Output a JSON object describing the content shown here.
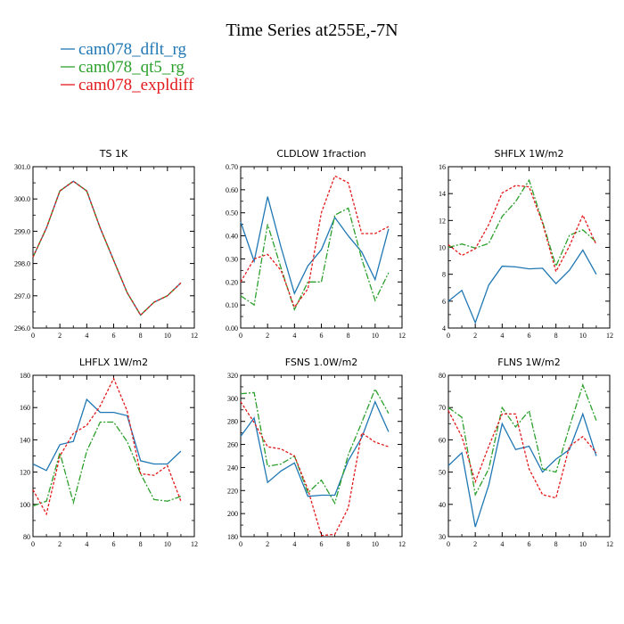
{
  "title": "Time Series at255E,-7N",
  "legend": [
    {
      "name": "cam078_dflt_rg",
      "color": "#1f77b4"
    },
    {
      "name": "cam078_qt5_rg",
      "color": "#2ca02c"
    },
    {
      "name": "cam078_expldiff",
      "color": "#e31a1c"
    }
  ],
  "chart_data": [
    {
      "type": "line",
      "title": "TS   1K",
      "x": [
        0,
        1,
        2,
        3,
        4,
        5,
        6,
        7,
        8,
        9,
        10,
        11
      ],
      "xlim": [
        0,
        12
      ],
      "xticks": [
        0,
        2,
        4,
        6,
        8,
        10,
        12
      ],
      "ylim": [
        296.0,
        301.0
      ],
      "yticks": [
        "296.0",
        "297.0",
        "298.0",
        "299.0",
        "300.0",
        "301.0"
      ],
      "series": [
        {
          "name": "cam078_dflt_rg",
          "values": [
            298.2,
            299.1,
            300.25,
            300.55,
            300.25,
            299.1,
            298.1,
            297.1,
            296.4,
            296.8,
            297.0,
            297.4
          ]
        },
        {
          "name": "cam078_qt5_rg",
          "values": [
            298.2,
            299.1,
            300.25,
            300.55,
            300.25,
            299.1,
            298.1,
            297.1,
            296.4,
            296.8,
            297.0,
            297.4
          ]
        },
        {
          "name": "cam078_expldiff",
          "values": [
            298.2,
            299.1,
            300.25,
            300.55,
            300.25,
            299.1,
            298.1,
            297.1,
            296.4,
            296.8,
            297.0,
            297.4
          ]
        }
      ]
    },
    {
      "type": "line",
      "title": "CLDLOW   1fraction",
      "x": [
        0,
        1,
        2,
        3,
        4,
        5,
        6,
        7,
        8,
        9,
        10,
        11
      ],
      "xlim": [
        0,
        12
      ],
      "xticks": [
        0,
        2,
        4,
        6,
        8,
        10,
        12
      ],
      "ylim": [
        0.0,
        0.7
      ],
      "yticks": [
        "0.00",
        "0.10",
        "0.20",
        "0.30",
        "0.40",
        "0.50",
        "0.60",
        "0.70"
      ],
      "series": [
        {
          "name": "cam078_dflt_rg",
          "values": [
            0.46,
            0.29,
            0.57,
            0.35,
            0.15,
            0.27,
            0.34,
            0.48,
            0.4,
            0.33,
            0.21,
            0.43
          ]
        },
        {
          "name": "cam078_qt5_rg",
          "values": [
            0.14,
            0.1,
            0.45,
            0.26,
            0.08,
            0.2,
            0.2,
            0.49,
            0.52,
            0.3,
            0.12,
            0.24
          ]
        },
        {
          "name": "cam078_expldiff",
          "values": [
            0.2,
            0.3,
            0.32,
            0.25,
            0.09,
            0.17,
            0.5,
            0.66,
            0.63,
            0.41,
            0.41,
            0.44
          ]
        }
      ]
    },
    {
      "type": "line",
      "title": "SHFLX   1W/m2",
      "x": [
        0,
        1,
        2,
        3,
        4,
        5,
        6,
        7,
        8,
        9,
        10,
        11
      ],
      "xlim": [
        0,
        12
      ],
      "xticks": [
        0,
        2,
        4,
        6,
        8,
        10,
        12
      ],
      "ylim": [
        4,
        16
      ],
      "yticks": [
        "4",
        "6",
        "8",
        "10",
        "12",
        "14",
        "16"
      ],
      "series": [
        {
          "name": "cam078_dflt_rg",
          "values": [
            6.0,
            6.8,
            4.4,
            7.2,
            8.6,
            8.55,
            8.4,
            8.45,
            7.3,
            8.3,
            9.8,
            8.0
          ]
        },
        {
          "name": "cam078_qt5_rg",
          "values": [
            10.0,
            10.25,
            9.95,
            10.3,
            12.3,
            13.4,
            15.0,
            11.9,
            8.6,
            10.9,
            11.3,
            10.4
          ]
        },
        {
          "name": "cam078_expldiff",
          "values": [
            10.2,
            9.4,
            9.9,
            11.7,
            14.05,
            14.6,
            14.5,
            11.8,
            8.2,
            10.1,
            12.4,
            10.2
          ]
        }
      ]
    },
    {
      "type": "line",
      "title": "LHFLX   1W/m2",
      "x": [
        0,
        1,
        2,
        3,
        4,
        5,
        6,
        7,
        8,
        9,
        10,
        11
      ],
      "xlim": [
        0,
        12
      ],
      "xticks": [
        0,
        2,
        4,
        6,
        8,
        10,
        12
      ],
      "ylim": [
        80,
        180
      ],
      "yticks": [
        "80",
        "100",
        "120",
        "140",
        "160",
        "180"
      ],
      "series": [
        {
          "name": "cam078_dflt_rg",
          "values": [
            125,
            121,
            137,
            139,
            165,
            157,
            157,
            155,
            127,
            125,
            125,
            133
          ]
        },
        {
          "name": "cam078_qt5_rg",
          "values": [
            99,
            102,
            132,
            101,
            133,
            151,
            151,
            139,
            119,
            103,
            102,
            105
          ]
        },
        {
          "name": "cam078_expldiff",
          "values": [
            109,
            94,
            130,
            144,
            149,
            161,
            178,
            158,
            119,
            118,
            124,
            102
          ]
        }
      ]
    },
    {
      "type": "line",
      "title": "FSNS   1.0W/m2",
      "x": [
        0,
        1,
        2,
        3,
        4,
        5,
        6,
        7,
        8,
        9,
        10,
        11
      ],
      "xlim": [
        0,
        12
      ],
      "xticks": [
        0,
        2,
        4,
        6,
        8,
        10,
        12
      ],
      "ylim": [
        180,
        320
      ],
      "yticks": [
        "180",
        "200",
        "220",
        "240",
        "260",
        "280",
        "300",
        "320"
      ],
      "series": [
        {
          "name": "cam078_dflt_rg",
          "values": [
            267,
            283,
            227,
            237,
            244,
            215,
            216,
            216,
            246,
            266,
            297,
            271
          ]
        },
        {
          "name": "cam078_qt5_rg",
          "values": [
            304,
            305,
            241,
            243,
            250,
            218,
            229,
            209,
            251,
            279,
            308,
            287
          ]
        },
        {
          "name": "cam078_expldiff",
          "values": [
            297,
            279,
            258,
            256,
            250,
            221,
            181,
            182,
            205,
            270,
            262,
            258
          ]
        }
      ]
    },
    {
      "type": "line",
      "title": "FLNS   1W/m2",
      "x": [
        0,
        1,
        2,
        3,
        4,
        5,
        6,
        7,
        8,
        9,
        10,
        11
      ],
      "xlim": [
        0,
        12
      ],
      "xticks": [
        0,
        2,
        4,
        6,
        8,
        10,
        12
      ],
      "ylim": [
        30,
        80
      ],
      "yticks": [
        "30",
        "40",
        "50",
        "60",
        "70",
        "80"
      ],
      "series": [
        {
          "name": "cam078_dflt_rg",
          "values": [
            52,
            56,
            33,
            46,
            65,
            57,
            58,
            50,
            54,
            57,
            68,
            55
          ]
        },
        {
          "name": "cam078_qt5_rg",
          "values": [
            70,
            67,
            43,
            51,
            70,
            64,
            69,
            51,
            50,
            64,
            77,
            66
          ]
        },
        {
          "name": "cam078_expldiff",
          "values": [
            69,
            61,
            47,
            58,
            68,
            68,
            51,
            43,
            42,
            58,
            61,
            56
          ]
        }
      ]
    }
  ]
}
